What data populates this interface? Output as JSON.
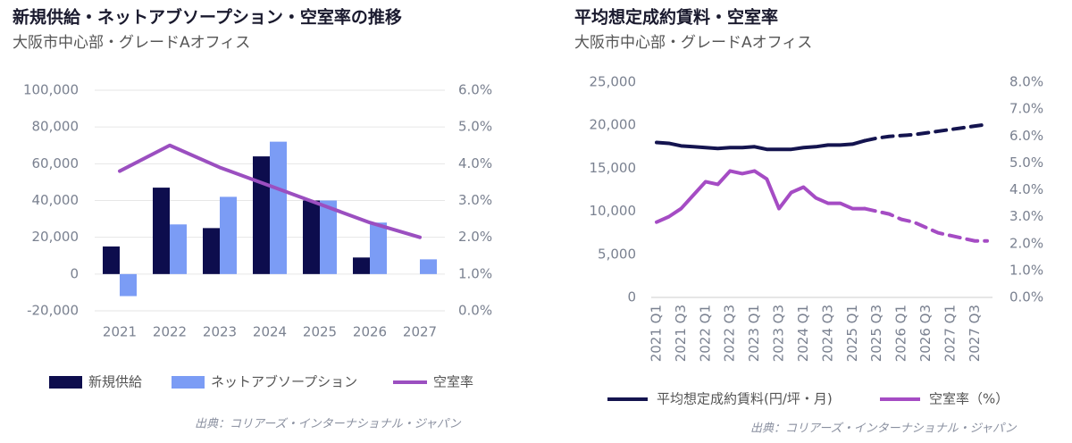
{
  "chart_data": [
    {
      "type": "bar",
      "title": "新規供給・ネットアブソープション・空室率の推移",
      "subtitle": "大阪市中心部・グレードAオフィス",
      "source": "出典：コリアーズ・インターナショナル・ジャパン",
      "categories": [
        "2021",
        "2022",
        "2023",
        "2024",
        "2025",
        "2026",
        "2027"
      ],
      "series": [
        {
          "name": "新規供給",
          "type": "bar",
          "color": "#0d0d4d",
          "values": [
            15000,
            47000,
            25000,
            64000,
            40000,
            9000,
            null
          ]
        },
        {
          "name": "ネットアブソープション",
          "type": "bar",
          "color": "#7b9cf5",
          "values": [
            -12000,
            27000,
            42000,
            72000,
            40000,
            28000,
            8000
          ]
        },
        {
          "name": "空室率",
          "type": "line",
          "axis": "y2",
          "color": "#9b4fc0",
          "values": [
            3.8,
            4.5,
            3.9,
            3.4,
            2.9,
            2.4,
            2.0
          ]
        }
      ],
      "ylim": [
        -20000,
        100000
      ],
      "yticks": [
        {
          "value": -20000,
          "label": "-20,000"
        },
        0,
        {
          "value": 20000,
          "label": "20,000"
        },
        {
          "value": 40000,
          "label": "40,000"
        },
        {
          "value": 60000,
          "label": "60,000"
        },
        {
          "value": 80000,
          "label": "80,000"
        },
        {
          "value": 100000,
          "label": "100,000"
        }
      ],
      "y2lim": [
        0,
        6
      ],
      "y2ticks": [
        {
          "value": 0,
          "label": "0.0%"
        },
        {
          "value": 1,
          "label": "1.0%"
        },
        {
          "value": 2,
          "label": "2.0%"
        },
        {
          "value": 3,
          "label": "3.0%"
        },
        {
          "value": 4,
          "label": "4.0%"
        },
        {
          "value": 5,
          "label": "5.0%"
        },
        {
          "value": 6,
          "label": "6.0%"
        }
      ],
      "grid": true
    },
    {
      "type": "line",
      "title": "平均想定成約賃料・空室率",
      "subtitle": "大阪市中心部・グレードAオフィス",
      "source": "出典：コリアーズ・インターナショナル・ジャパン",
      "categories": [
        "2021 Q1",
        null,
        "2021 Q3",
        null,
        "2022 Q1",
        null,
        "2022 Q3",
        null,
        "2023 Q1",
        null,
        "2023 Q3",
        null,
        "2024 Q1",
        null,
        "2024 Q3",
        null,
        "2025 Q1",
        null,
        "2025 Q3",
        null,
        "2026 Q1",
        null,
        "2026 Q3",
        null,
        "2027 Q1",
        null,
        "2027 Q3",
        null
      ],
      "series": [
        {
          "name": "平均想定成約賃料(円/坪・月)",
          "color": "#14144f",
          "dashed_from": 17,
          "values": [
            18000,
            17900,
            17600,
            17500,
            17400,
            17300,
            17400,
            17400,
            17500,
            17200,
            17200,
            17200,
            17400,
            17500,
            17700,
            17700,
            17800,
            18200,
            18500,
            18700,
            18800,
            18900,
            19100,
            19300,
            19500,
            19700,
            19900,
            20100
          ]
        },
        {
          "name": "空室率（%）",
          "color": "#a54cc4",
          "axis": "y2",
          "dashed_from": 17,
          "values": [
            2.8,
            3.0,
            3.3,
            3.8,
            4.3,
            4.2,
            4.7,
            4.6,
            4.7,
            4.4,
            3.3,
            3.9,
            4.1,
            3.7,
            3.5,
            3.5,
            3.3,
            3.3,
            3.2,
            3.1,
            2.9,
            2.8,
            2.6,
            2.4,
            2.3,
            2.2,
            2.1,
            2.1
          ]
        }
      ],
      "ylim": [
        0,
        25000
      ],
      "yticks": [
        0,
        {
          "value": 5000,
          "label": "5,000"
        },
        {
          "value": 10000,
          "label": "10,000"
        },
        {
          "value": 15000,
          "label": "15,000"
        },
        {
          "value": 20000,
          "label": "20,000"
        },
        {
          "value": 25000,
          "label": "25,000"
        }
      ],
      "y2lim": [
        0,
        8
      ],
      "y2ticks": [
        {
          "value": 0,
          "label": "0.0%"
        },
        {
          "value": 1,
          "label": "1.0%"
        },
        {
          "value": 2,
          "label": "2.0%"
        },
        {
          "value": 3,
          "label": "3.0%"
        },
        {
          "value": 4,
          "label": "4.0%"
        },
        {
          "value": 5,
          "label": "5.0%"
        },
        {
          "value": 6,
          "label": "6.0%"
        },
        {
          "value": 7,
          "label": "7.0%"
        },
        {
          "value": 8,
          "label": "8.0%"
        }
      ],
      "grid": false
    }
  ]
}
